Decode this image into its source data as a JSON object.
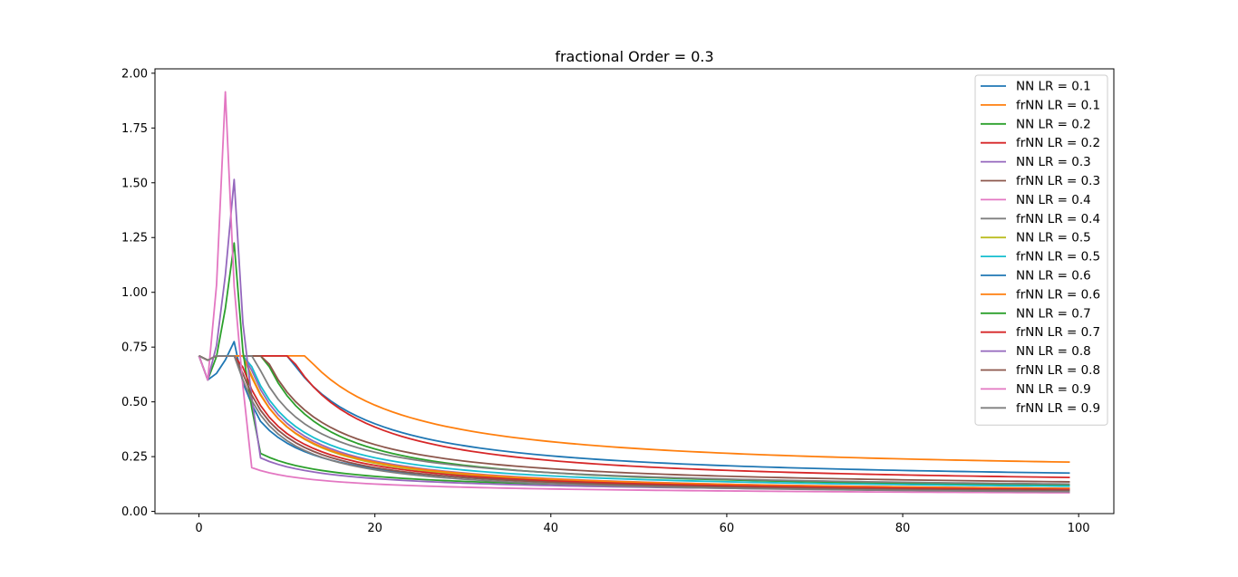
{
  "chart_data": {
    "type": "line",
    "title": "fractional Order = 0.3",
    "xlabel": "",
    "ylabel": "",
    "xlim": [
      -5,
      104
    ],
    "ylim": [
      -0.01,
      2.02
    ],
    "x_ticks": [
      0,
      20,
      40,
      60,
      80,
      100
    ],
    "y_ticks": [
      0.0,
      0.25,
      0.5,
      0.75,
      1.0,
      1.25,
      1.5,
      1.75,
      2.0
    ],
    "y_tick_labels": [
      "0.00",
      "0.25",
      "0.50",
      "0.75",
      "1.00",
      "1.25",
      "1.50",
      "1.75",
      "2.00"
    ],
    "x_tick_labels": [
      "0",
      "20",
      "40",
      "60",
      "80",
      "100"
    ],
    "grid": false,
    "legend_position": "top-right",
    "x_range": [
      0,
      99
    ],
    "series": [
      {
        "name": "NN LR = 0.1",
        "color": "#1f77b4",
        "start": 0.71,
        "mid_x": 20,
        "mid": 0.4,
        "end": 0.175
      },
      {
        "name": "frNN LR = 0.1",
        "color": "#ff7f0e",
        "start": 0.71,
        "mid_x": 20,
        "mid": 0.485,
        "end": 0.225
      },
      {
        "name": "NN LR = 0.2",
        "color": "#2ca02c",
        "start": 0.71,
        "mid_x": 20,
        "mid": 0.285,
        "end": 0.12
      },
      {
        "name": "frNN LR = 0.2",
        "color": "#d62728",
        "start": 0.71,
        "mid_x": 20,
        "mid": 0.385,
        "end": 0.155
      },
      {
        "name": "NN LR = 0.3",
        "color": "#9467bd",
        "start": 0.71,
        "mid_x": 20,
        "mid": 0.23,
        "end": 0.105
      },
      {
        "name": "frNN LR = 0.3",
        "color": "#8c564b",
        "start": 0.71,
        "mid_x": 20,
        "mid": 0.305,
        "end": 0.135
      },
      {
        "name": "NN LR = 0.4",
        "color": "#e377c2",
        "start": 0.71,
        "mid_x": 20,
        "mid": 0.2,
        "end": 0.095
      },
      {
        "name": "frNN LR = 0.4",
        "color": "#7f7f7f",
        "start": 0.71,
        "mid_x": 20,
        "mid": 0.27,
        "end": 0.125
      },
      {
        "name": "NN LR = 0.5",
        "color": "#bcbd22",
        "start": 0.71,
        "mid_x": 20,
        "mid": 0.22,
        "end": 0.1
      },
      {
        "name": "frNN LR = 0.5",
        "color": "#17becf",
        "start": 0.71,
        "mid_x": 20,
        "mid": 0.245,
        "end": 0.115
      },
      {
        "name": "NN LR = 0.6",
        "color": "#1f77b4",
        "start": 0.71,
        "peak_x": 4,
        "peak": 0.775,
        "mid_x": 20,
        "mid": 0.195,
        "end": 0.1
      },
      {
        "name": "frNN LR = 0.6",
        "color": "#ff7f0e",
        "start": 0.71,
        "mid_x": 20,
        "mid": 0.225,
        "end": 0.105
      },
      {
        "name": "NN LR = 0.7",
        "color": "#2ca02c",
        "start": 0.71,
        "peak_x": 4,
        "peak": 1.225,
        "mid_x": 20,
        "mid": 0.16,
        "end": 0.1
      },
      {
        "name": "frNN LR = 0.7",
        "color": "#d62728",
        "start": 0.71,
        "mid_x": 20,
        "mid": 0.21,
        "end": 0.1
      },
      {
        "name": "NN LR = 0.8",
        "color": "#9467bd",
        "start": 0.71,
        "peak_x": 4,
        "peak": 1.515,
        "mid_x": 20,
        "mid": 0.15,
        "end": 0.095
      },
      {
        "name": "frNN LR = 0.8",
        "color": "#8c564b",
        "start": 0.71,
        "mid_x": 20,
        "mid": 0.2,
        "end": 0.095
      },
      {
        "name": "NN LR = 0.9",
        "color": "#e377c2",
        "start": 0.71,
        "peak_x": 3,
        "peak": 1.915,
        "mid_x": 20,
        "mid": 0.125,
        "end": 0.085
      },
      {
        "name": "frNN LR = 0.9",
        "color": "#7f7f7f",
        "start": 0.71,
        "mid_x": 20,
        "mid": 0.19,
        "end": 0.09
      }
    ]
  }
}
